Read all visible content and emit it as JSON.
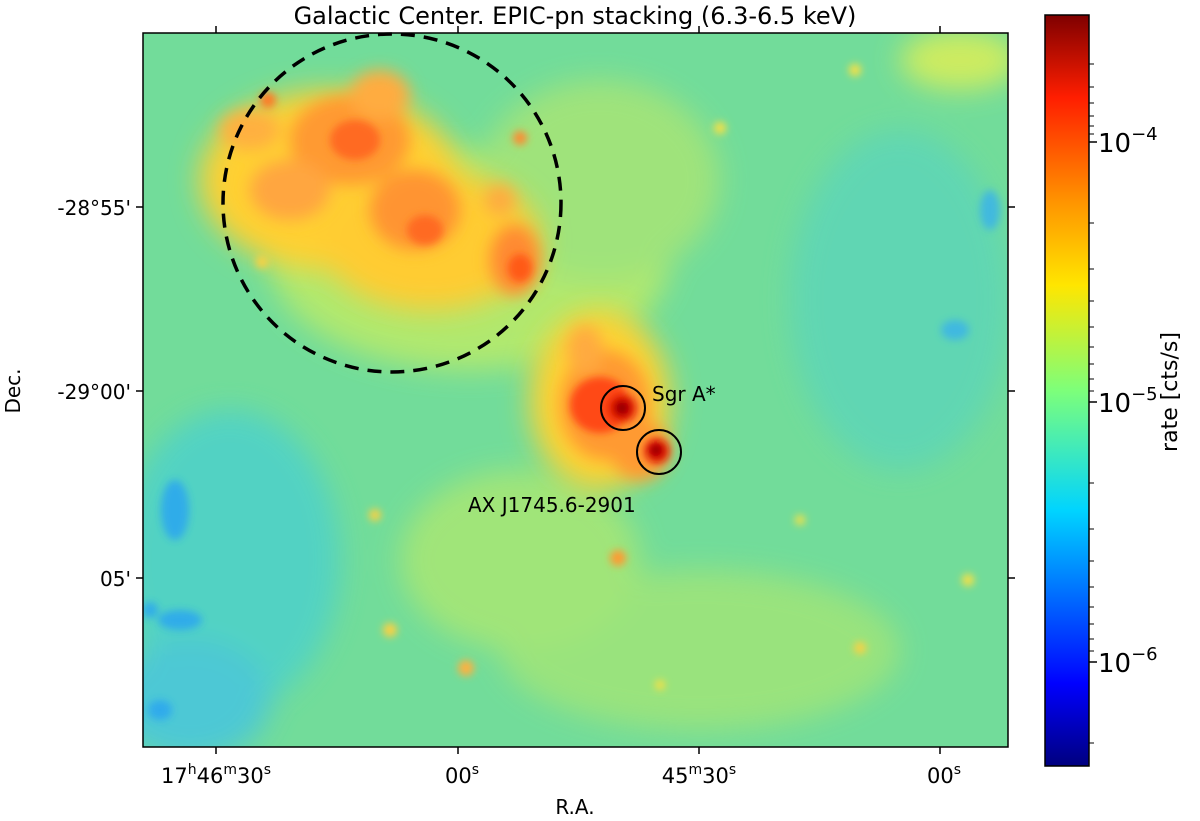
{
  "figure": {
    "title": "Galactic Center. EPIC-pn stacking (6.3-6.5 keV)",
    "x_axis": {
      "label": "R.A.",
      "ticks": [
        {
          "base": "17",
          "s1": "h",
          "mid": "46",
          "s2": "m",
          "end": "30",
          "s3": "s"
        },
        {
          "base": "",
          "s1": "",
          "mid": "",
          "s2": "",
          "end": "00",
          "s3": "s"
        },
        {
          "base": "",
          "s1": "",
          "mid": "45",
          "s2": "m",
          "end": "30",
          "s3": "s"
        },
        {
          "base": "",
          "s1": "",
          "mid": "",
          "s2": "",
          "end": "00",
          "s3": "s"
        }
      ]
    },
    "y_axis": {
      "label": "Dec.",
      "ticks": [
        "-28°55'",
        "-29°00'",
        "05'"
      ]
    },
    "colorbar": {
      "label": "rate [cts/s]",
      "scale": "log",
      "colormap": "jet",
      "ticks": [
        {
          "base": "10",
          "exp": "−4"
        },
        {
          "base": "10",
          "exp": "−5"
        },
        {
          "base": "10",
          "exp": "−6"
        }
      ]
    },
    "annotations": {
      "sgr": "Sgr A*",
      "ax": "AX J1745.6-2901"
    },
    "colors": {
      "background_map": "#6fe09a",
      "diffuse_emission": "#ff8a30",
      "peak": "#a00000",
      "region_outline": "#000000"
    }
  }
}
